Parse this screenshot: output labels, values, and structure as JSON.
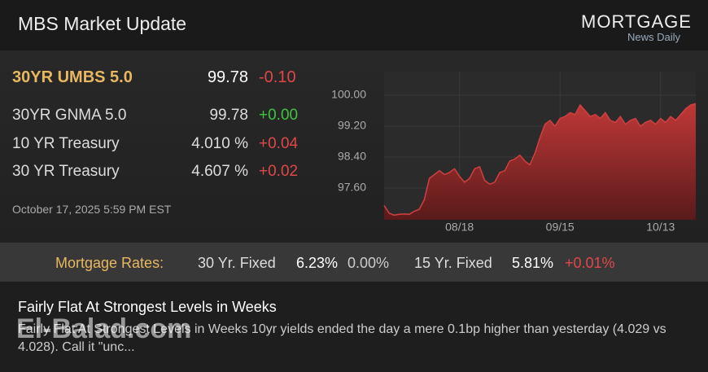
{
  "header": {
    "title": "MBS Market Update",
    "logo_top": "MORTGAGE",
    "logo_bottom": "News Daily"
  },
  "quotes": [
    {
      "name": "30YR UMBS 5.0",
      "price": "99.78",
      "change": "-0.10"
    },
    {
      "name": "30YR GNMA 5.0",
      "price": "99.78",
      "change": "+0.00"
    },
    {
      "name": "10 YR Treasury",
      "price": "4.010 %",
      "change": "+0.04"
    },
    {
      "name": "30 YR Treasury",
      "price": "4.607 %",
      "change": "+0.02"
    }
  ],
  "timestamp": "October 17, 2025 5:59 PM EST",
  "rates": {
    "label": "Mortgage Rates:",
    "items": [
      {
        "name": "30 Yr. Fixed",
        "rate": "6.23%",
        "change": "0.00%"
      },
      {
        "name": "15 Yr. Fixed",
        "rate": "5.81%",
        "change": "+0.01%"
      }
    ]
  },
  "article": {
    "headline": "Fairly Flat At Strongest Levels in Weeks",
    "summary": "Fairly Flat At Strongest Levels in Weeks 10yr yields ended the day a mere 0.1bp higher than yesterday (4.029 vs 4.028).  Call it \"unc...",
    "watermark": "El-Balad.com"
  },
  "chart_data": {
    "type": "area",
    "color": "#d04040",
    "categories": [
      null,
      null,
      null,
      null,
      null,
      null,
      null,
      null,
      null,
      null,
      null,
      null,
      null,
      null,
      null,
      "08/18",
      null,
      null,
      null,
      null,
      null,
      null,
      null,
      null,
      null,
      null,
      null,
      null,
      null,
      null,
      null,
      null,
      null,
      null,
      null,
      "09/15",
      null,
      null,
      null,
      null,
      null,
      null,
      null,
      null,
      null,
      null,
      null,
      null,
      null,
      null,
      null,
      null,
      null,
      null,
      null,
      "10/13",
      null,
      null,
      null,
      null,
      null,
      null,
      null
    ],
    "values": [
      97.15,
      96.95,
      96.9,
      96.92,
      96.93,
      96.92,
      97.0,
      97.05,
      97.3,
      97.85,
      97.95,
      98.05,
      97.95,
      98.0,
      98.1,
      97.9,
      97.75,
      97.85,
      98.1,
      98.15,
      97.8,
      97.7,
      97.75,
      98.0,
      98.05,
      98.3,
      98.35,
      98.45,
      98.3,
      98.2,
      98.5,
      98.9,
      99.25,
      99.35,
      99.2,
      99.4,
      99.45,
      99.55,
      99.5,
      99.75,
      99.6,
      99.45,
      99.5,
      99.4,
      99.55,
      99.35,
      99.3,
      99.45,
      99.25,
      99.35,
      99.4,
      99.2,
      99.3,
      99.35,
      99.25,
      99.4,
      99.3,
      99.45,
      99.35,
      99.5,
      99.65,
      99.75,
      99.78
    ],
    "ylim": [
      96.78,
      100.61
    ],
    "yticks": [
      {
        "value": 97.6,
        "label": "97.60"
      },
      {
        "value": 98.4,
        "label": "98.40"
      },
      {
        "value": 99.2,
        "label": "99.20"
      },
      {
        "value": 100,
        "label": "100.00"
      }
    ],
    "grid": true
  }
}
